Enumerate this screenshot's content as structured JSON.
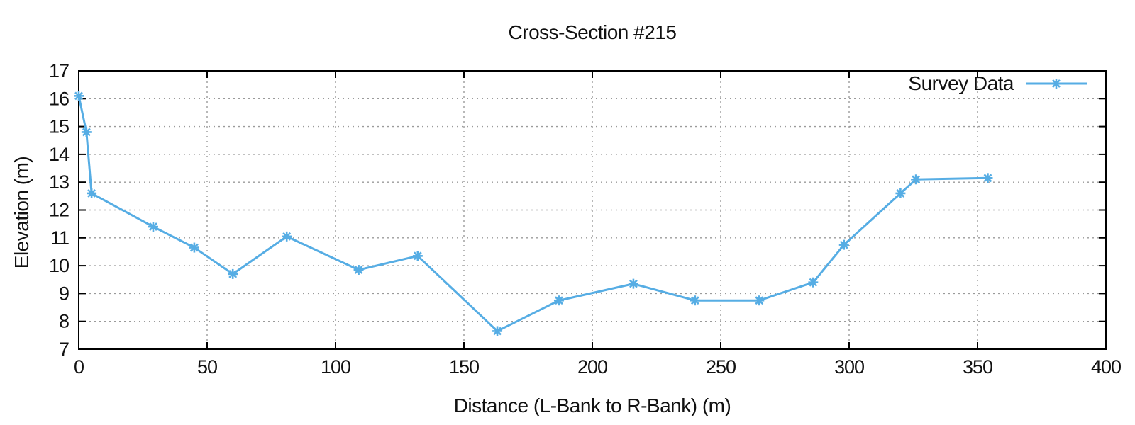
{
  "figure": {
    "background": "#ffffff",
    "text_color": "#111111",
    "axis_color": "#000000",
    "grid_color": "#9a9a9a"
  },
  "chart_data": {
    "type": "line",
    "title": "Cross-Section #215",
    "xlabel": "Distance (L-Bank to R-Bank) (m)",
    "ylabel": "Elevation (m)",
    "xlim": [
      0,
      400
    ],
    "ylim": [
      7,
      17
    ],
    "xticks": [
      0,
      50,
      100,
      150,
      200,
      250,
      300,
      350,
      400
    ],
    "yticks": [
      7,
      8,
      9,
      10,
      11,
      12,
      13,
      14,
      15,
      16,
      17
    ],
    "grid": true,
    "grid_style": "dotted",
    "legend_position": "top-right-inside",
    "series": [
      {
        "name": "Survey Data",
        "color": "#56ade4",
        "marker": "asterisk",
        "points": [
          [
            0,
            16.1
          ],
          [
            3,
            14.8
          ],
          [
            5,
            12.6
          ],
          [
            29,
            11.4
          ],
          [
            45,
            10.65
          ],
          [
            60,
            9.7
          ],
          [
            81,
            11.05
          ],
          [
            109,
            9.85
          ],
          [
            132,
            10.35
          ],
          [
            163,
            7.65
          ],
          [
            187,
            8.75
          ],
          [
            216,
            9.35
          ],
          [
            240,
            8.75
          ],
          [
            265,
            8.75
          ],
          [
            286,
            9.4
          ],
          [
            298,
            10.75
          ],
          [
            320,
            12.6
          ],
          [
            326,
            13.1
          ],
          [
            354,
            13.15
          ]
        ]
      }
    ]
  }
}
